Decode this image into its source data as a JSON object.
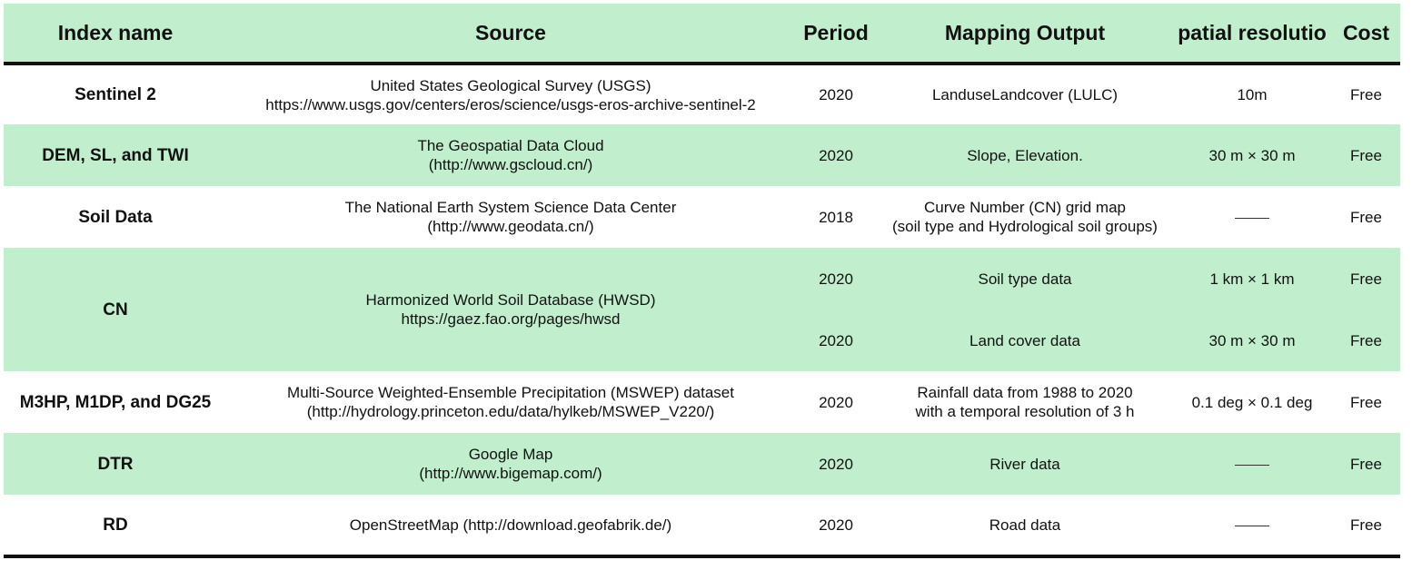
{
  "headers": [
    "Index name",
    "Source",
    "Period",
    "Mapping Output",
    "patial resolutio",
    "Cost"
  ],
  "rows": [
    {
      "name": "Sentinel 2",
      "source": [
        "United States Geological Survey (USGS)",
        "https://www.usgs.gov/centers/eros/science/usgs-eros-archive-sentinel-2"
      ],
      "period": "2020",
      "output": [
        "LanduseLandcover (LULC)",
        ""
      ],
      "resolution": "10m",
      "cost": "Free"
    },
    {
      "name": "DEM, SL, and TWI",
      "source": [
        "The Geospatial Data Cloud",
        "(http://www.gscloud.cn/)"
      ],
      "period": "2020",
      "output": [
        "Slope, Elevation.",
        ""
      ],
      "resolution": "30 m × 30 m",
      "cost": "Free"
    },
    {
      "name": "Soil Data",
      "source": [
        "The National Earth System Science Data Center",
        "(http://www.geodata.cn/)"
      ],
      "period": "2018",
      "output": [
        "Curve Number (CN) grid map",
        "(soil type and Hydrological soil groups)"
      ],
      "resolution": "——",
      "cost": "Free"
    },
    {
      "name": "CN",
      "source": [
        "Harmonized World Soil Database (HWSD)",
        "https://gaez.fao.org/pages/hwsd"
      ],
      "sub": [
        {
          "period": "2020",
          "output": "Soil type data",
          "resolution": "1 km × 1 km",
          "cost": "Free"
        },
        {
          "period": "2020",
          "output": "Land cover data",
          "resolution": "30 m × 30 m",
          "cost": "Free"
        }
      ]
    },
    {
      "name": "M3HP, M1DP, and DG25",
      "source": [
        "Multi-Source Weighted-Ensemble Precipitation (MSWEP) dataset",
        "(http://hydrology.princeton.edu/data/hylkeb/MSWEP_V220/)"
      ],
      "period": "2020",
      "output": [
        "Rainfall data from 1988 to 2020",
        "with a temporal resolution of 3 h"
      ],
      "resolution": "0.1 deg × 0.1 deg",
      "cost": "Free"
    },
    {
      "name": "DTR",
      "source": [
        "Google Map",
        "(http://www.bigemap.com/)"
      ],
      "period": "2020",
      "output": [
        "River data",
        ""
      ],
      "resolution": "——",
      "cost": "Free"
    },
    {
      "name": "RD",
      "source": [
        "OpenStreetMap (http://download.geofabrik.de/)",
        ""
      ],
      "period": "2020",
      "output": [
        "Road data",
        ""
      ],
      "resolution": "——",
      "cost": "Free"
    }
  ]
}
